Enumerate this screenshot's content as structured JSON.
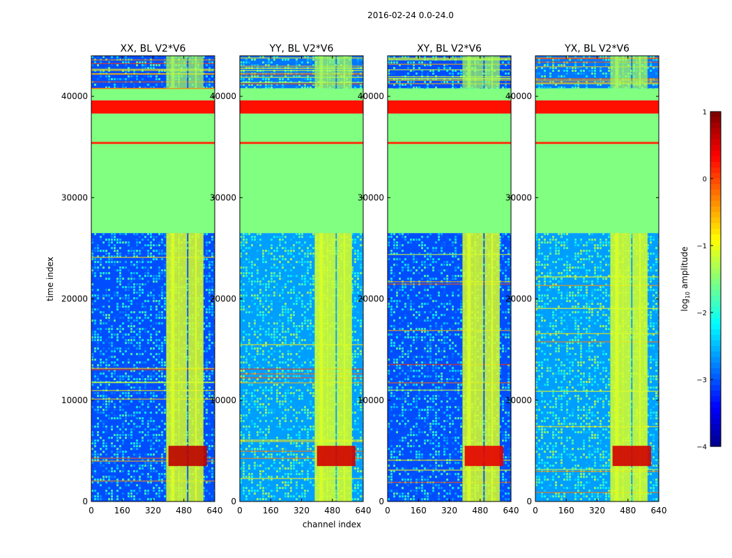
{
  "figure": {
    "suptitle": "2016-02-24 0.0-24.0",
    "xlabel": "channel index",
    "ylabel": "time index"
  },
  "chart_data": [
    {
      "type": "heatmap",
      "title": "XX, BL V2*V6",
      "xlim": [
        0,
        640
      ],
      "ylim": [
        0,
        44000
      ],
      "xticks": [
        0,
        160,
        320,
        480,
        640
      ],
      "yticks": [
        0,
        10000,
        20000,
        30000,
        40000
      ],
      "xlabel": "channel index",
      "ylabel": "time index",
      "value_scale": "log10 amplitude",
      "vrange": [
        -4,
        1
      ],
      "bands": [
        {
          "t0": 0,
          "t1": 26500,
          "level": -3.0
        },
        {
          "t0": 26500,
          "t1": 35300,
          "level": -1.5
        },
        {
          "t0": 35300,
          "t1": 35500,
          "level": 0.2
        },
        {
          "t0": 35500,
          "t1": 38300,
          "level": -1.5
        },
        {
          "t0": 38300,
          "t1": 39600,
          "level": 0.3
        },
        {
          "t0": 39600,
          "t1": 40800,
          "level": -1.5
        },
        {
          "t0": 40800,
          "t1": 44000,
          "level": -3.0
        }
      ],
      "hot_columns": [
        410,
        435,
        475,
        525,
        560
      ],
      "hot_region": {
        "c0": 400,
        "c1": 600,
        "t0": 3500,
        "t1": 5500,
        "level": 0.7
      }
    },
    {
      "type": "heatmap",
      "title": "YY, BL V2*V6",
      "xlim": [
        0,
        640
      ],
      "ylim": [
        0,
        44000
      ],
      "xticks": [
        0,
        160,
        320,
        480,
        640
      ],
      "yticks": [
        0,
        10000,
        20000,
        30000,
        40000
      ],
      "value_scale": "log10 amplitude",
      "vrange": [
        -4,
        1
      ],
      "bands": [
        {
          "t0": 0,
          "t1": 26500,
          "level": -2.6
        },
        {
          "t0": 26500,
          "t1": 35300,
          "level": -1.5
        },
        {
          "t0": 35300,
          "t1": 35500,
          "level": 0.2
        },
        {
          "t0": 35500,
          "t1": 38300,
          "level": -1.5
        },
        {
          "t0": 38300,
          "t1": 39600,
          "level": 0.3
        },
        {
          "t0": 39600,
          "t1": 40800,
          "level": -1.5
        },
        {
          "t0": 40800,
          "t1": 44000,
          "level": -2.8
        }
      ],
      "hot_columns": [
        410,
        435,
        475,
        525,
        560
      ],
      "hot_region": {
        "c0": 400,
        "c1": 600,
        "t0": 3500,
        "t1": 5500,
        "level": 0.6
      }
    },
    {
      "type": "heatmap",
      "title": "XY, BL V2*V6",
      "xlim": [
        0,
        640
      ],
      "ylim": [
        0,
        44000
      ],
      "xticks": [
        0,
        160,
        320,
        480,
        640
      ],
      "yticks": [
        0,
        10000,
        20000,
        30000,
        40000
      ],
      "value_scale": "log10 amplitude",
      "vrange": [
        -4,
        1
      ],
      "bands": [
        {
          "t0": 0,
          "t1": 26500,
          "level": -3.0
        },
        {
          "t0": 26500,
          "t1": 35300,
          "level": -1.5
        },
        {
          "t0": 35300,
          "t1": 35500,
          "level": 0.2
        },
        {
          "t0": 35500,
          "t1": 38300,
          "level": -1.5
        },
        {
          "t0": 38300,
          "t1": 39600,
          "level": 0.3
        },
        {
          "t0": 39600,
          "t1": 40800,
          "level": -1.5
        },
        {
          "t0": 40800,
          "t1": 44000,
          "level": -3.0
        }
      ],
      "hot_columns": [
        410,
        435,
        475,
        525,
        560
      ],
      "hot_region": {
        "c0": 400,
        "c1": 600,
        "t0": 3500,
        "t1": 5500,
        "level": 0.5
      }
    },
    {
      "type": "heatmap",
      "title": "YX, BL V2*V6",
      "xlim": [
        0,
        640
      ],
      "ylim": [
        0,
        44000
      ],
      "xticks": [
        0,
        160,
        320,
        480,
        640
      ],
      "yticks": [
        0,
        10000,
        20000,
        30000,
        40000
      ],
      "value_scale": "log10 amplitude",
      "vrange": [
        -4,
        1
      ],
      "bands": [
        {
          "t0": 0,
          "t1": 26500,
          "level": -2.6
        },
        {
          "t0": 26500,
          "t1": 35300,
          "level": -1.5
        },
        {
          "t0": 35300,
          "t1": 35500,
          "level": 0.2
        },
        {
          "t0": 35500,
          "t1": 38300,
          "level": -1.5
        },
        {
          "t0": 38300,
          "t1": 39600,
          "level": 0.3
        },
        {
          "t0": 39600,
          "t1": 40800,
          "level": -1.5
        },
        {
          "t0": 40800,
          "t1": 44000,
          "level": -2.8
        }
      ],
      "hot_columns": [
        410,
        435,
        475,
        525,
        560
      ],
      "hot_region": {
        "c0": 400,
        "c1": 600,
        "t0": 3500,
        "t1": 5500,
        "level": 0.6
      }
    }
  ],
  "colorbar": {
    "label_prefix": "log",
    "label_sub": "10",
    "label_suffix": " amplitude",
    "ticks": [
      1,
      0,
      -1,
      -2,
      -3,
      -4
    ],
    "tick_labels": [
      "1",
      "0",
      "−1",
      "−2",
      "−3",
      "−4"
    ],
    "vmin": -4,
    "vmax": 1,
    "colormap": "jet"
  },
  "tick_labels": {
    "x": [
      "0",
      "160",
      "320",
      "480",
      "640"
    ],
    "y": [
      "0",
      "10000",
      "20000",
      "30000",
      "40000"
    ]
  }
}
